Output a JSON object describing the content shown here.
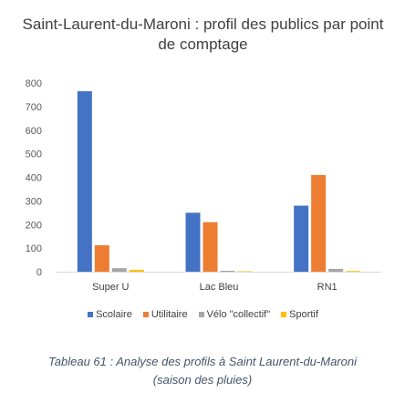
{
  "chart_data": {
    "type": "bar",
    "title": "Saint-Laurent-du-Maroni : profil des publics par point de comptage",
    "categories": [
      "Super U",
      "Lac Bleu",
      "RN1"
    ],
    "series": [
      {
        "name": "Scolaire",
        "color": "#4472c4",
        "values": [
          765,
          250,
          280
        ]
      },
      {
        "name": "Utilitaire",
        "color": "#ed7d31",
        "values": [
          112,
          210,
          410
        ]
      },
      {
        "name": "Vélo \"collectif\"",
        "color": "#a5a5a5",
        "values": [
          15,
          4,
          12
        ]
      },
      {
        "name": "Sportif",
        "color": "#ffc000",
        "values": [
          8,
          2,
          3
        ]
      }
    ],
    "xlabel": "",
    "ylabel": "",
    "ylim": [
      0,
      800
    ],
    "yticks": [
      0,
      100,
      200,
      300,
      400,
      500,
      600,
      700,
      800
    ],
    "grid": false,
    "legend_position": "bottom"
  },
  "caption": {
    "line1": "Tableau 61 : Analyse des profils à Saint Laurent-du-Maroni",
    "line2": "(saison des pluies)"
  }
}
